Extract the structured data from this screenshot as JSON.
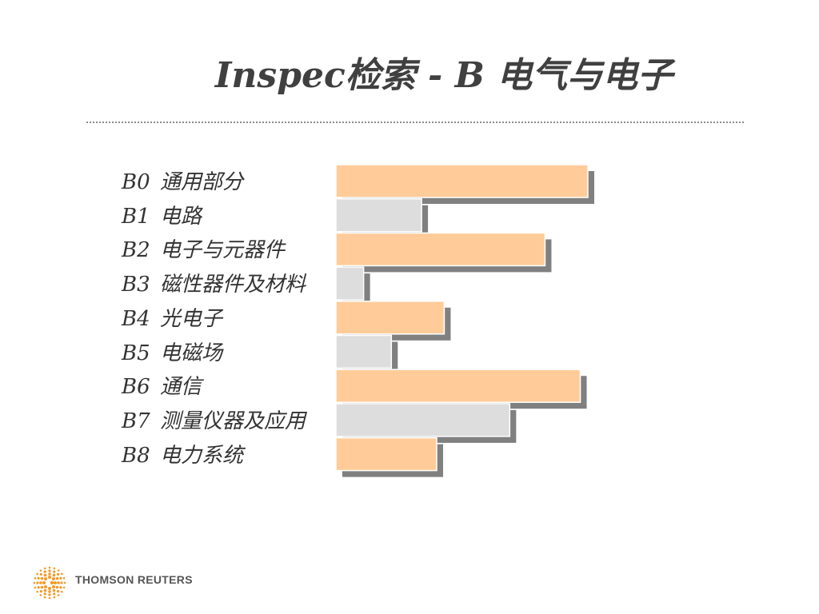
{
  "title": "Inspec检索 - B  电气与电子",
  "footer": {
    "brand": "THOMSON REUTERS"
  },
  "colors": {
    "orange": "#FFCC99",
    "gray": "#DDDDDD",
    "shadow": "#808080"
  },
  "chart_data": {
    "type": "bar",
    "orientation": "horizontal",
    "title": "",
    "xlabel": "",
    "ylabel": "",
    "categories": [
      {
        "code": "B0",
        "label": "通用部分"
      },
      {
        "code": "B1",
        "label": "电路"
      },
      {
        "code": "B2",
        "label": "电子与元器件"
      },
      {
        "code": "B3",
        "label": "磁性器件及材料"
      },
      {
        "code": "B4",
        "label": "光电子"
      },
      {
        "code": "B5",
        "label": "电磁场"
      },
      {
        "code": "B6",
        "label": "通信"
      },
      {
        "code": "B7",
        "label": "测量仪器及应用"
      },
      {
        "code": "B8",
        "label": "电力系统"
      }
    ],
    "values": [
      100,
      34,
      83,
      11,
      43,
      22,
      97,
      69,
      40
    ],
    "bar_colors": [
      "orange",
      "gray",
      "orange",
      "gray",
      "orange",
      "gray",
      "orange",
      "gray",
      "orange"
    ],
    "xlim": [
      0,
      100
    ],
    "grid": false,
    "legend": "none"
  }
}
